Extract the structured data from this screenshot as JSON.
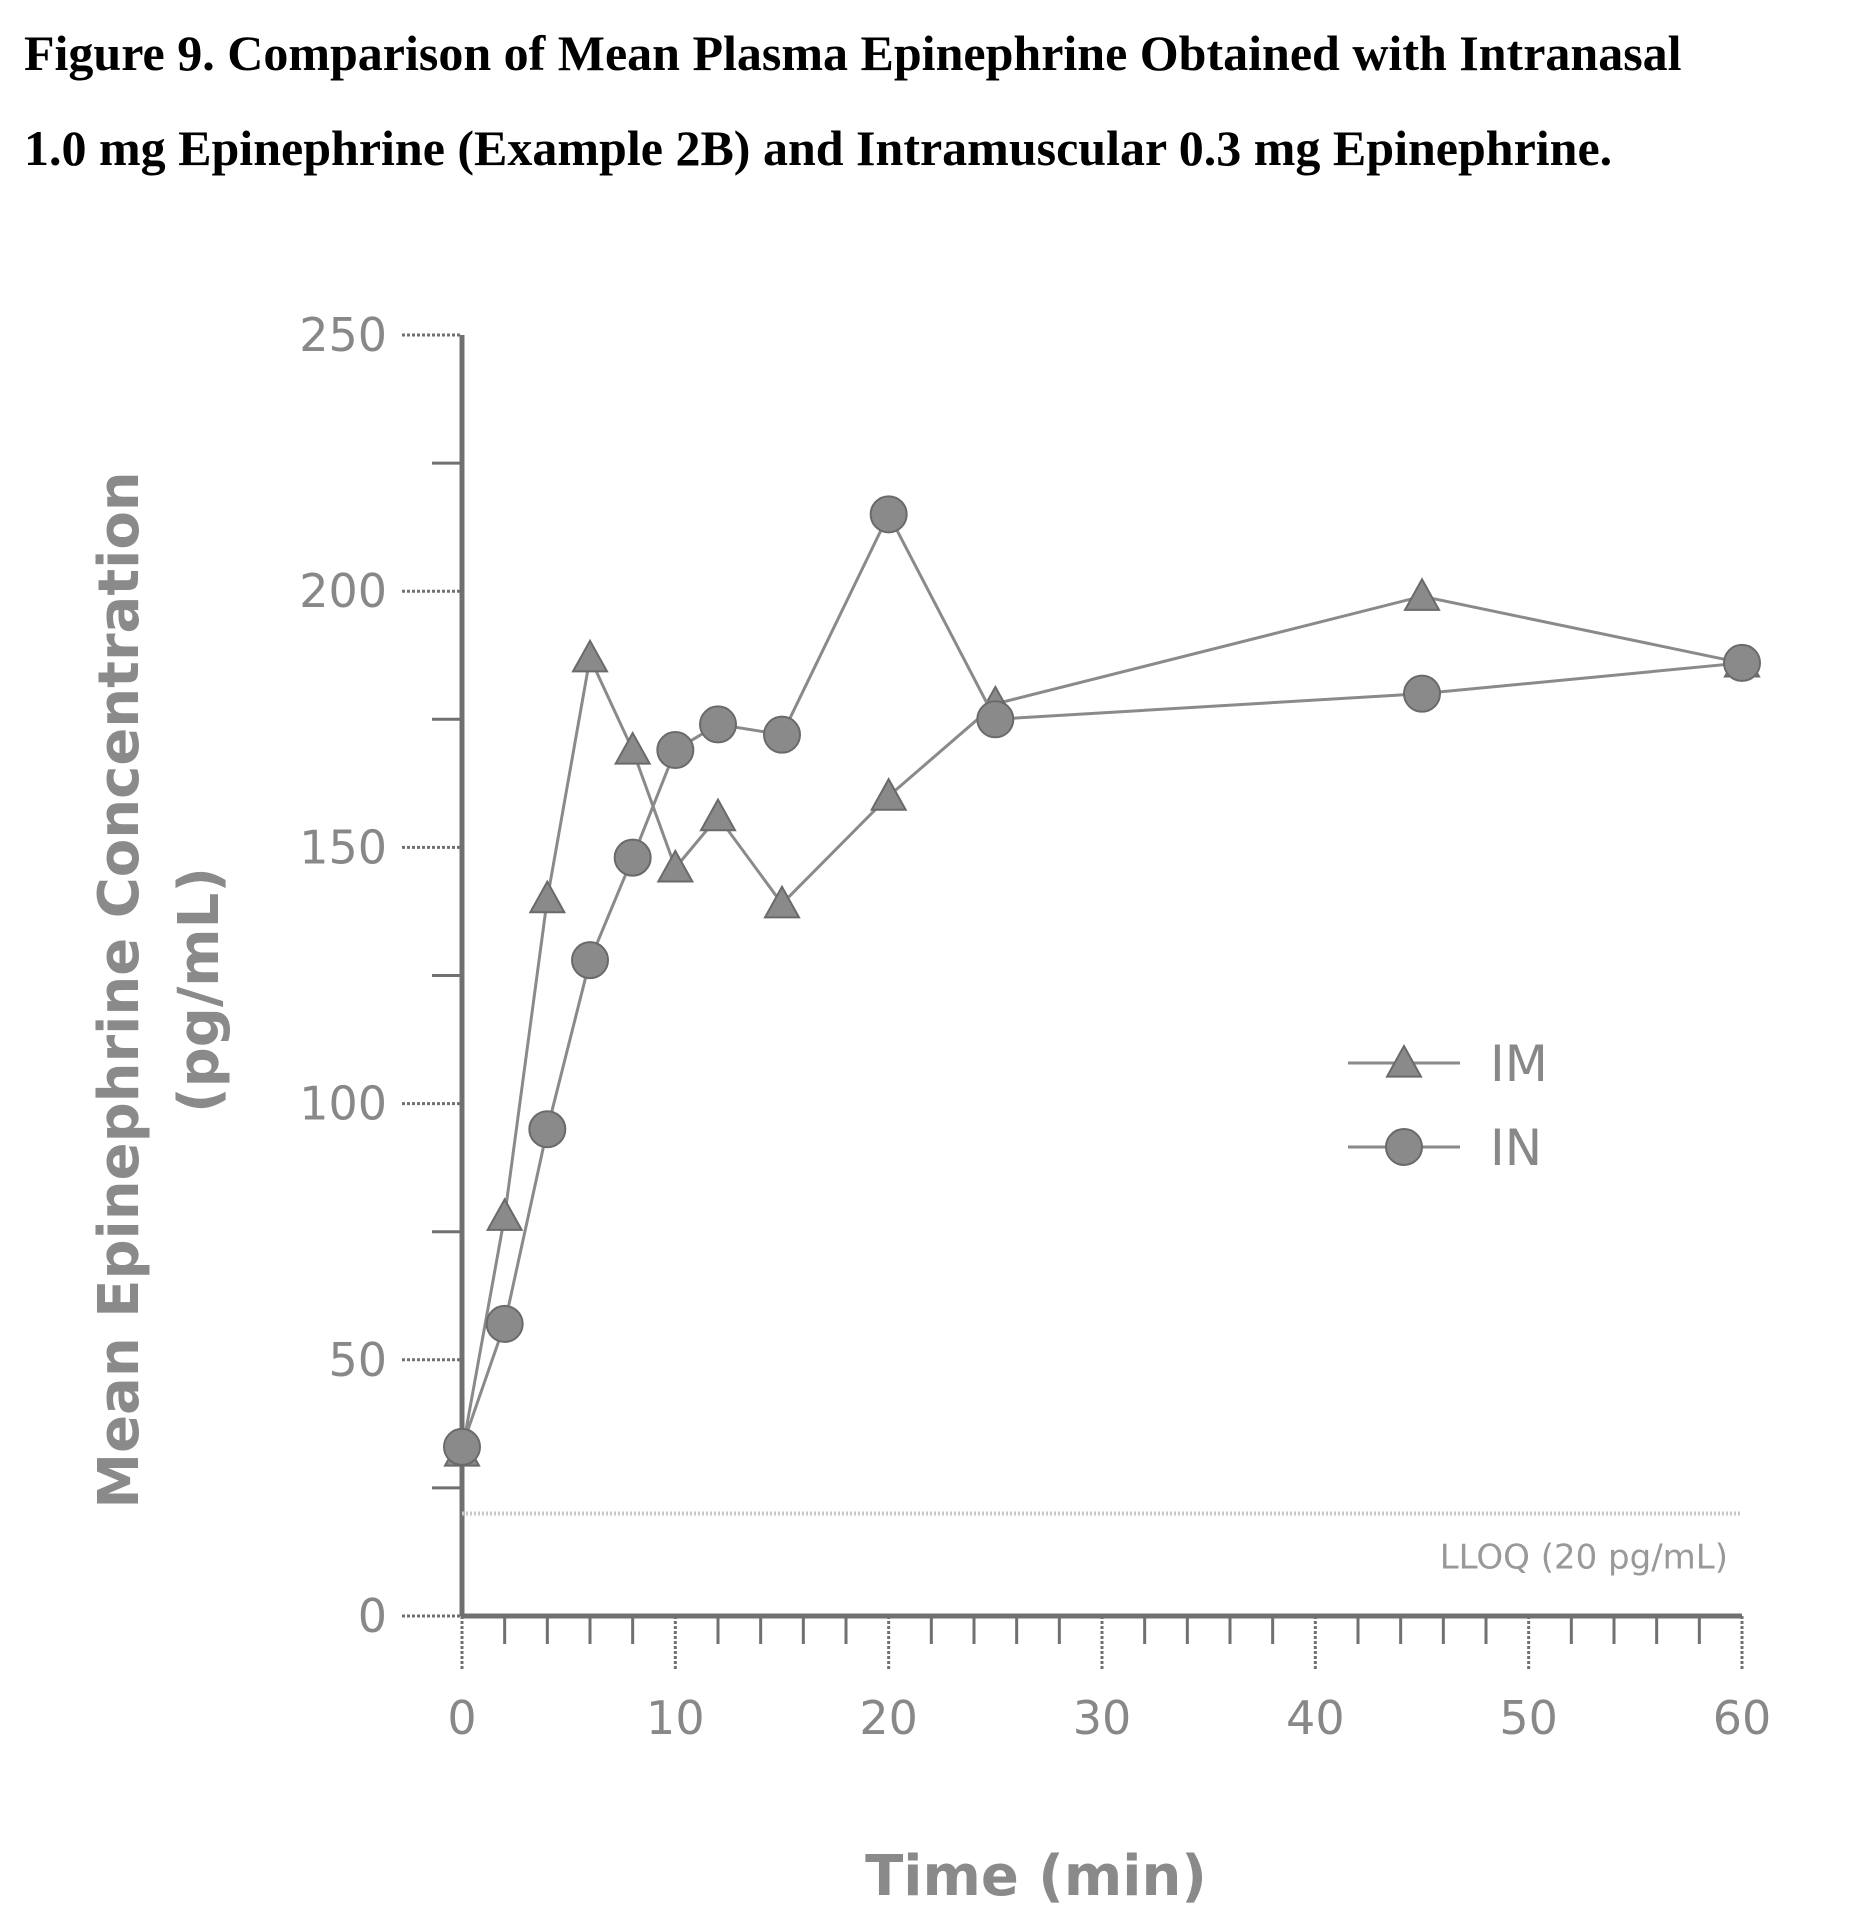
{
  "figure": {
    "title_line1": "Figure  9. Comparison of Mean Plasma Epinephrine Obtained with Intranasal",
    "title_line2": "1.0 mg Epinephrine (Example 2B) and Intramuscular 0.3 mg Epinephrine."
  },
  "chart_data": {
    "type": "line",
    "xlabel": "Time (min)",
    "ylabel_line1": "Mean Epinephrine Concentration",
    "ylabel_line2": "(pg/mL)",
    "xlim": [
      0,
      60
    ],
    "ylim": [
      0,
      250
    ],
    "x_ticks": [
      0,
      10,
      20,
      30,
      40,
      50,
      60
    ],
    "y_ticks": [
      0,
      50,
      100,
      150,
      200,
      250
    ],
    "grid": false,
    "legend_position": "right",
    "series": [
      {
        "name": "IM",
        "marker": "triangle",
        "x": [
          0,
          2,
          4,
          6,
          8,
          10,
          12,
          15,
          20,
          25,
          45,
          60
        ],
        "y": [
          32,
          78,
          140,
          187,
          169,
          146,
          156,
          139,
          160,
          178,
          199,
          186
        ]
      },
      {
        "name": "IN",
        "marker": "circle",
        "x": [
          0,
          2,
          4,
          6,
          8,
          10,
          12,
          15,
          20,
          25,
          45,
          60
        ],
        "y": [
          33,
          57,
          95,
          128,
          148,
          169,
          174,
          172,
          215,
          175,
          180,
          186
        ]
      }
    ],
    "reference_line": {
      "y": 20,
      "label": "LLOQ (20 pg/mL)"
    },
    "colors": {
      "series": "#8a8a8a",
      "axis": "#707070",
      "reference": "#c8c8c8"
    }
  }
}
